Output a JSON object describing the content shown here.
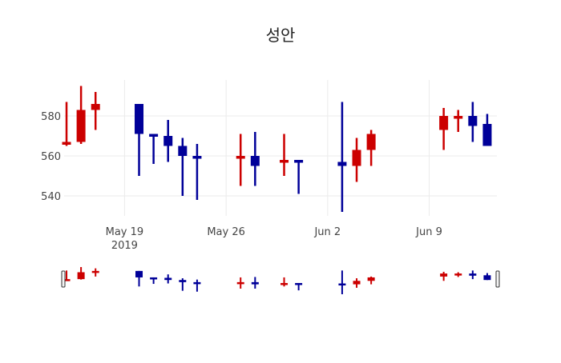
{
  "chart_data": {
    "type": "candlestick",
    "title": "성안",
    "xlabel": "",
    "ylabel": "",
    "ylim": [
      530,
      598
    ],
    "yticks": [
      540,
      560,
      580
    ],
    "xticks": [
      {
        "date": "2019-05-19",
        "label": "May 19",
        "sublabel": "2019"
      },
      {
        "date": "2019-05-26",
        "label": "May 26",
        "sublabel": ""
      },
      {
        "date": "2019-06-02",
        "label": "Jun 2",
        "sublabel": ""
      },
      {
        "date": "2019-06-09",
        "label": "Jun 9",
        "sublabel": ""
      }
    ],
    "xrange": [
      "2019-05-14T20:00",
      "2019-06-13T16:00"
    ],
    "grid": true,
    "rangeslider": true,
    "increasing_color": "#cc0000",
    "decreasing_color": "#000099",
    "dates": [
      "2019-05-15",
      "2019-05-16",
      "2019-05-17",
      "2019-05-20",
      "2019-05-21",
      "2019-05-22",
      "2019-05-23",
      "2019-05-24",
      "2019-05-27",
      "2019-05-28",
      "2019-05-30",
      "2019-05-31",
      "2019-06-03",
      "2019-06-04",
      "2019-06-05",
      "2019-06-10",
      "2019-06-11",
      "2019-06-12",
      "2019-06-13"
    ],
    "series": [
      {
        "name": "open",
        "values": [
          566,
          567,
          583,
          586,
          571,
          570,
          565,
          560,
          559,
          560,
          557,
          558,
          557,
          555,
          563,
          573,
          579,
          580,
          576
        ]
      },
      {
        "name": "high",
        "values": [
          587,
          595,
          592,
          586,
          571,
          578,
          569,
          566,
          571,
          572,
          571,
          558,
          587,
          569,
          573,
          584,
          583,
          587,
          581
        ]
      },
      {
        "name": "low",
        "values": [
          565,
          566,
          573,
          550,
          556,
          557,
          540,
          538,
          545,
          545,
          550,
          541,
          532,
          547,
          555,
          563,
          572,
          567,
          565
        ]
      },
      {
        "name": "close",
        "values": [
          567,
          583,
          586,
          571,
          570,
          565,
          560,
          559,
          560,
          555,
          558,
          557,
          555,
          563,
          571,
          580,
          580,
          575,
          565
        ]
      }
    ]
  }
}
